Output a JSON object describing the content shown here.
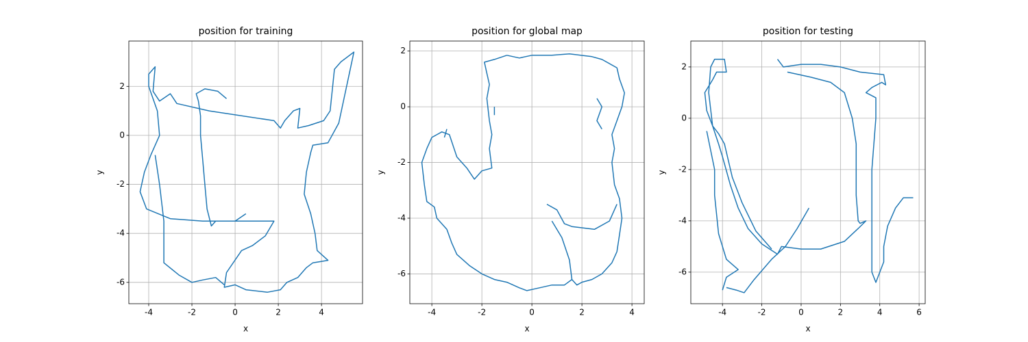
{
  "chart_data": [
    {
      "type": "line",
      "title": "position for training",
      "x_label": "x",
      "y_label": "y",
      "color": "#1f77b4",
      "grid": true,
      "xlim": [
        -4.92,
        5.9
      ],
      "ylim": [
        -6.87,
        3.85
      ],
      "xticks": [
        -4,
        -2,
        0,
        2,
        4
      ],
      "yticks": [
        -6,
        -4,
        -2,
        0,
        2
      ],
      "x": [
        -0.4,
        -0.8,
        -1.4,
        -1.8,
        -1.7,
        -1.6,
        -1.6,
        -1.5,
        -1.4,
        -1.3,
        -1.1,
        -0.9,
        0.5,
        1.8,
        1.4,
        0.8,
        0.3,
        -0.4,
        -0.5,
        0,
        0.5,
        1.5,
        2.1,
        2.4,
        2.9,
        3.3,
        3.6,
        4.3,
        3.8,
        3.7,
        3.5,
        3.2,
        3.3,
        3.5,
        3.6,
        4.3,
        4.8,
        5.5,
        4.9,
        4.6,
        4.4,
        4.1,
        3.4,
        2.9,
        3,
        2.7,
        2.3,
        2.1,
        1.8,
        -1.2,
        -2.7,
        -3,
        -3.5,
        -3.8,
        -3.7,
        -4,
        -4,
        -3.6,
        -3.5,
        -3.9,
        -4.2,
        -4.4,
        -4.1,
        -3,
        -1.5,
        0,
        0.5,
        null,
        -3.7,
        -3.5,
        -3.3,
        -3.3,
        -2.6,
        -2,
        -1.5,
        -0.9,
        -0.5
      ],
      "y": [
        1.5,
        1.8,
        1.9,
        1.7,
        1.4,
        0.8,
        0,
        -1,
        -2,
        -3,
        -3.7,
        -3.5,
        -3.5,
        -3.5,
        -4.1,
        -4.5,
        -4.7,
        -5.6,
        -6.2,
        -6.1,
        -6.3,
        -6.4,
        -6.3,
        -6,
        -5.8,
        -5.4,
        -5.2,
        -5.1,
        -4.7,
        -4,
        -3.2,
        -2.4,
        -1.5,
        -0.7,
        -0.4,
        -0.3,
        0.5,
        3.4,
        3,
        2.7,
        1,
        0.6,
        0.4,
        0.3,
        1.1,
        1,
        0.6,
        0.3,
        0.6,
        1,
        1.3,
        1.7,
        1.4,
        1.8,
        2.8,
        2.5,
        2,
        1,
        0,
        -0.8,
        -1.5,
        -2.3,
        -3,
        -3.4,
        -3.5,
        -3.5,
        -3.2,
        null,
        -0.8,
        -2,
        -3.5,
        -5.2,
        -5.7,
        -6,
        -5.9,
        -5.8,
        -6.1
      ]
    },
    {
      "type": "line",
      "title": "position for global map",
      "x_label": "x",
      "y_label": "y",
      "color": "#1f77b4",
      "grid": true,
      "xlim": [
        -4.88,
        4.49
      ],
      "ylim": [
        -7.07,
        2.36
      ],
      "xticks": [
        -4,
        -2,
        0,
        2,
        4
      ],
      "yticks": [
        -6,
        -4,
        -2,
        0,
        2
      ],
      "x": [
        -1,
        -1.5,
        -1.9,
        -1.8,
        -1.7,
        -1.8,
        -1.7,
        -1.6,
        -1.7,
        -1.6,
        -2,
        -2.3,
        -2.6,
        -3,
        -3.3,
        -3.6,
        -4,
        -4.2,
        -4.4,
        -4.3,
        -4.2,
        -3.9,
        -3.8,
        -3.4,
        -3.2,
        -3,
        -2.5,
        -2,
        -1.5,
        -1,
        -0.5,
        -0.2,
        0.3,
        0.8,
        1.3,
        1.6,
        1.8,
        2,
        2.4,
        2.8,
        3.2,
        3.4,
        3.5,
        3.6,
        3.5,
        3.3,
        3.2,
        3.3,
        3.2,
        3.4,
        3.6,
        3.7,
        3.5,
        3.4,
        2.8,
        2.4,
        1.5,
        0.8,
        0,
        -0.5,
        -1,
        null,
        0.6,
        1,
        1.3,
        1.6,
        2.5,
        3.1,
        3.4,
        null,
        0.8,
        1.2,
        1.5,
        1.6,
        null,
        2.6,
        2.8,
        2.6,
        2.8,
        null,
        -3.4,
        -3.5,
        null,
        -1.5,
        -1.5
      ],
      "y": [
        1.85,
        1.7,
        1.6,
        1.2,
        0.8,
        0.3,
        -0.5,
        -1,
        -1.5,
        -2.2,
        -2.3,
        -2.6,
        -2.2,
        -1.8,
        -1,
        -0.9,
        -1.1,
        -1.5,
        -2,
        -2.8,
        -3.4,
        -3.6,
        -4,
        -4.4,
        -4.9,
        -5.3,
        -5.7,
        -6,
        -6.2,
        -6.3,
        -6.5,
        -6.6,
        -6.5,
        -6.4,
        -6.4,
        -6.2,
        -6.4,
        -6.3,
        -6.2,
        -6,
        -5.6,
        -5.2,
        -4.6,
        -4,
        -3.3,
        -2.8,
        -2,
        -1.5,
        -1,
        -0.5,
        0,
        0.5,
        1,
        1.4,
        1.7,
        1.8,
        1.9,
        1.85,
        1.85,
        1.75,
        1.85,
        null,
        -3.5,
        -3.7,
        -4.2,
        -4.3,
        -4.4,
        -4.1,
        -3.5,
        null,
        -4.1,
        -4.7,
        -5.5,
        -6.2,
        null,
        0.3,
        0,
        -0.5,
        -0.8,
        null,
        -0.8,
        -1.1,
        null,
        -0.3,
        0
      ]
    },
    {
      "type": "line",
      "title": "position for testing",
      "x_label": "x",
      "y_label": "y",
      "color": "#1f77b4",
      "grid": true,
      "xlim": [
        -5.61,
        6.31
      ],
      "ylim": [
        -7.23,
        3.01
      ],
      "xticks": [
        -4,
        -2,
        0,
        2,
        4,
        6
      ],
      "yticks": [
        -6,
        -4,
        -2,
        0,
        2
      ],
      "x": [
        -1.2,
        -0.9,
        0,
        1,
        2,
        3,
        4.2,
        4.3,
        4.1,
        3.6,
        3.3,
        3.8,
        3.8,
        3.7,
        3.6,
        3.6,
        3.6,
        3.6,
        3.6,
        3.8,
        4.2,
        4.2,
        4.4,
        4.8,
        5.2,
        5.7,
        null,
        -0.7,
        0.5,
        1.5,
        2.2,
        2.6,
        2.8,
        2.8,
        2.8,
        2.9,
        3,
        3.3,
        2.9,
        2.2,
        1,
        0,
        -1,
        -1.2,
        -2,
        -2.7,
        -3.2,
        -3.6,
        -4,
        -4.2,
        -4.5,
        -4.7,
        -4.6,
        -4.4,
        -3.9,
        -3.8,
        -4.3,
        -4.5,
        -4.9,
        -4.8,
        -4.5,
        -4.2,
        -3.9,
        -3.5,
        -3,
        -2.3,
        -1.5,
        null,
        0.4,
        -0.2,
        -0.8,
        -1.5,
        -2.4,
        -2.9,
        -3.3,
        -3.8,
        null,
        -4,
        -3.8,
        -3.2,
        -3.8,
        -4.2,
        -4.4,
        -4.4,
        -4.8
      ],
      "y": [
        2.3,
        2,
        2.1,
        2.1,
        2,
        1.8,
        1.7,
        1.3,
        1.4,
        1.2,
        1,
        0.8,
        0,
        -1,
        -2,
        -3,
        -4,
        -5,
        -6,
        -6.4,
        -5.6,
        -5,
        -4.2,
        -3.5,
        -3.1,
        -3.1,
        null,
        1.8,
        1.6,
        1.4,
        1,
        0,
        -1,
        -2,
        -3,
        -4,
        -4.1,
        -4,
        -4.3,
        -4.8,
        -5.1,
        -5.1,
        -5,
        -5.3,
        -4.9,
        -4.3,
        -3.5,
        -2.6,
        -1.5,
        -1,
        -0.3,
        1,
        2,
        2.3,
        2.3,
        1.8,
        1.8,
        1.5,
        1,
        0.3,
        -0.3,
        -0.6,
        -1,
        -2.3,
        -3.3,
        -4.4,
        -5.1,
        null,
        -3.5,
        -4.3,
        -5,
        -5.5,
        -6.3,
        -6.8,
        -6.7,
        -6.6,
        null,
        -6.7,
        -6.2,
        -5.9,
        -5.5,
        -4.5,
        -3,
        -2,
        -0.5
      ]
    }
  ]
}
